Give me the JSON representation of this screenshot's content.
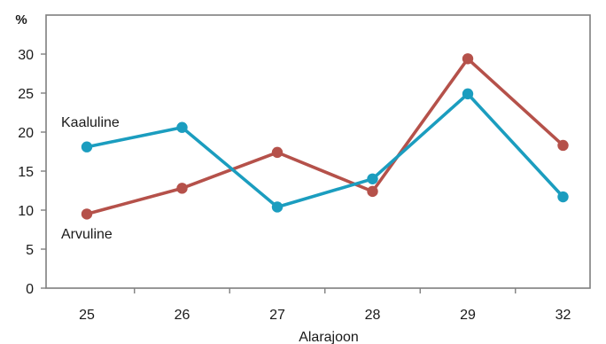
{
  "chart_data": {
    "type": "line",
    "categories": [
      "25",
      "26",
      "27",
      "28",
      "29",
      "32"
    ],
    "series": [
      {
        "name": "Kaaluline",
        "values": [
          18.1,
          20.6,
          10.4,
          14.0,
          24.9,
          11.7
        ],
        "color": "#1b9dbf"
      },
      {
        "name": "Arvuline",
        "values": [
          9.5,
          12.8,
          17.4,
          12.4,
          29.4,
          18.3
        ],
        "color": "#b5514a"
      }
    ],
    "xlabel": "Alarajoon",
    "ylabel": "%",
    "ylim": [
      0,
      35
    ],
    "yticks": [
      "0",
      "5",
      "10",
      "15",
      "20",
      "25",
      "30"
    ],
    "grid": false,
    "axis_color": "#7f7f7f"
  }
}
